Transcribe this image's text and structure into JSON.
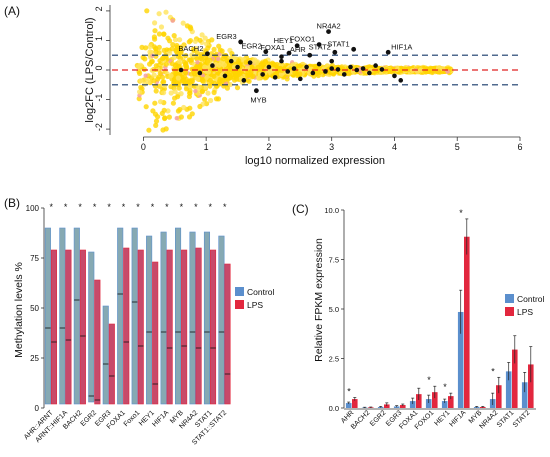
{
  "panels": {
    "a": "(A)",
    "b": "(B)",
    "c": "(C)"
  },
  "colors": {
    "cloud": "#ffd400",
    "cloud_light": "#ffe45a",
    "outlier": "#f4a0a0",
    "control": "#5b8fcd",
    "lps": "#e2273e",
    "box_control": "#86a9b3",
    "box_lps": "#c74a6a",
    "red_line": "#e02020",
    "dash_line": "#16386a"
  },
  "chart_data": [
    {
      "type": "scatter",
      "panel": "A",
      "xlabel": "log10 normalized expression",
      "ylabel": "log2FC (LPS/Control)",
      "xlim": [
        -0.5,
        6
      ],
      "ylim": [
        -2.2,
        2.2
      ],
      "xticks": [
        "0",
        "1",
        "2",
        "3",
        "4",
        "5",
        "6"
      ],
      "yticks": [
        "-2",
        "-1",
        "0",
        "1",
        "2"
      ],
      "ref_lines": {
        "zero": 0,
        "thresholds": [
          0.5,
          -0.5
        ]
      },
      "genes": [
        {
          "name": "BACH2",
          "x": 1.02,
          "y": 0.55
        },
        {
          "name": "EGR3",
          "x": 1.55,
          "y": 0.95
        },
        {
          "name": "EGR2",
          "x": 1.95,
          "y": 0.62
        },
        {
          "name": "HEY1",
          "x": 2.45,
          "y": 0.82
        },
        {
          "name": "FOXO1",
          "x": 2.8,
          "y": 0.86
        },
        {
          "name": "FOXA1",
          "x": 2.32,
          "y": 0.57
        },
        {
          "name": "AHR",
          "x": 2.65,
          "y": 0.5
        },
        {
          "name": "NR4A2",
          "x": 2.95,
          "y": 1.3
        },
        {
          "name": "STAT2",
          "x": 3.05,
          "y": 0.6
        },
        {
          "name": "STAT1",
          "x": 3.35,
          "y": 0.7
        },
        {
          "name": "HIF1A",
          "x": 3.9,
          "y": 0.6
        },
        {
          "name": "MYB",
          "x": 1.8,
          "y": -0.7
        }
      ],
      "other_points": [
        {
          "x": 0.6,
          "y": 0.0
        },
        {
          "x": 0.9,
          "y": -0.1
        },
        {
          "x": 1.1,
          "y": 0.15
        },
        {
          "x": 1.3,
          "y": -0.2
        },
        {
          "x": 1.5,
          "y": 0.1
        },
        {
          "x": 1.6,
          "y": -0.35
        },
        {
          "x": 1.7,
          "y": 0.25
        },
        {
          "x": 1.9,
          "y": -0.15
        },
        {
          "x": 2.0,
          "y": 0.1
        },
        {
          "x": 2.1,
          "y": -0.25
        },
        {
          "x": 2.2,
          "y": 0.3
        },
        {
          "x": 2.3,
          "y": -0.05
        },
        {
          "x": 2.4,
          "y": 0.05
        },
        {
          "x": 2.5,
          "y": -0.3
        },
        {
          "x": 2.6,
          "y": 0.1
        },
        {
          "x": 2.7,
          "y": -0.1
        },
        {
          "x": 2.8,
          "y": 0.2
        },
        {
          "x": 2.9,
          "y": -0.05
        },
        {
          "x": 3.0,
          "y": 0.05
        },
        {
          "x": 3.1,
          "y": 0.02
        },
        {
          "x": 3.2,
          "y": -0.15
        },
        {
          "x": 3.3,
          "y": 0.1
        },
        {
          "x": 3.4,
          "y": 0.0
        },
        {
          "x": 3.5,
          "y": 0.05
        },
        {
          "x": 3.6,
          "y": -0.1
        },
        {
          "x": 3.7,
          "y": 0.15
        },
        {
          "x": 3.8,
          "y": 0.02
        },
        {
          "x": 4.0,
          "y": -0.2
        },
        {
          "x": 4.1,
          "y": -0.35
        },
        {
          "x": 3.0,
          "y": 0.3
        },
        {
          "x": 2.2,
          "y": 0.45
        },
        {
          "x": 1.4,
          "y": 0.3
        }
      ]
    },
    {
      "type": "box",
      "panel": "B",
      "ylabel": "Methylation levels %",
      "ylim": [
        0,
        100
      ],
      "yticks": [
        "0",
        "25",
        "50",
        "75",
        "100"
      ],
      "categories": [
        "AHR::ARNT",
        "ARNT::HIF1A",
        "BACH2",
        "EGR2",
        "EGR3",
        "FOXA1",
        "Foxo1",
        "HEY1",
        "HIF1A",
        "MYB",
        "NR4A2",
        "STAT1",
        "STAT1::STAT2"
      ],
      "legend": {
        "position": "right",
        "items": [
          "Control",
          "LPS"
        ]
      },
      "significance": "*",
      "series": [
        {
          "name": "Control",
          "q1": [
            2,
            2,
            2,
            3,
            2,
            2,
            2,
            2,
            2,
            2,
            2,
            2,
            2
          ],
          "median": [
            40,
            40,
            54,
            6,
            22,
            57,
            53,
            38,
            38,
            38,
            38,
            38,
            38
          ],
          "q3": [
            90,
            90,
            90,
            78,
            51,
            90,
            90,
            86,
            88,
            90,
            88,
            88,
            86
          ]
        },
        {
          "name": "LPS",
          "q1": [
            2,
            2,
            2,
            2,
            2,
            2,
            2,
            2,
            2,
            2,
            2,
            2,
            2
          ],
          "median": [
            33,
            34,
            36,
            4,
            16,
            33,
            31,
            12,
            30,
            31,
            30,
            30,
            17
          ],
          "q3": [
            79,
            79,
            79,
            64,
            42,
            80,
            79,
            73,
            79,
            79,
            80,
            79,
            72
          ]
        }
      ]
    },
    {
      "type": "bar",
      "panel": "C",
      "ylabel": "Relative FPKM expression",
      "ylim": [
        0,
        10
      ],
      "yticks": [
        "0.0",
        "2.5",
        "5.0",
        "7.5",
        "10.0"
      ],
      "categories": [
        "AHR",
        "BACH2",
        "EGR2",
        "EGR3",
        "FOXA1",
        "FOXO1",
        "HEY1",
        "HIF1A",
        "MYB",
        "NR4A2",
        "STAT1",
        "STAT2"
      ],
      "legend": {
        "position": "right",
        "items": [
          "Control",
          "LPS"
        ]
      },
      "starred": [
        0,
        5,
        6,
        7,
        9
      ],
      "series": [
        {
          "name": "Control",
          "values": [
            0.25,
            0.02,
            0.05,
            0.08,
            0.35,
            0.45,
            0.35,
            4.85,
            0.05,
            0.45,
            1.85,
            1.3
          ],
          "errors": [
            0.05,
            0.02,
            0.03,
            0.04,
            0.15,
            0.2,
            0.1,
            1.1,
            0.03,
            0.3,
            0.45,
            0.5
          ]
        },
        {
          "name": "LPS",
          "values": [
            0.45,
            0.03,
            0.18,
            0.15,
            0.7,
            0.8,
            0.6,
            8.65,
            0.05,
            1.15,
            2.95,
            2.2
          ],
          "errors": [
            0.08,
            0.02,
            0.08,
            0.05,
            0.3,
            0.3,
            0.15,
            0.9,
            0.03,
            0.4,
            0.7,
            0.9
          ]
        }
      ]
    }
  ]
}
